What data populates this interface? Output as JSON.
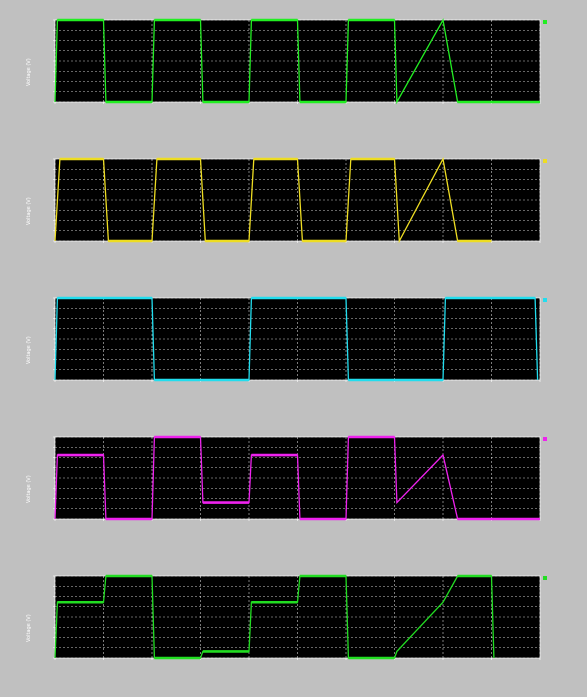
{
  "figure": {
    "background": "#c0c0c0",
    "axes_background": "#000000",
    "grid_color": "#ffffff"
  },
  "chart_data": [
    {
      "type": "line",
      "title": "",
      "xlabel": "",
      "ylabel": "Voltage (V)",
      "xlim": [
        0,
        10
      ],
      "ylim": [
        0,
        1
      ],
      "grid": true,
      "legend": "right",
      "series": [
        {
          "color": "#22ee22",
          "x": [
            0,
            0.05,
            1,
            1.05,
            2,
            2.05,
            3,
            3.05,
            4,
            4.05,
            5,
            5.05,
            6,
            6.05,
            7,
            7.05,
            8,
            8.3,
            9,
            9.05,
            10
          ],
          "y": [
            0,
            1,
            1,
            0,
            0,
            1,
            1,
            0,
            0,
            1,
            1,
            0,
            0,
            1,
            1,
            0,
            1,
            0,
            0,
            0,
            0
          ]
        }
      ]
    },
    {
      "type": "line",
      "title": "",
      "xlabel": "",
      "ylabel": "Voltage (V)",
      "xlim": [
        0,
        10
      ],
      "ylim": [
        0,
        1
      ],
      "grid": true,
      "legend": "right",
      "series": [
        {
          "color": "#eedd22",
          "x": [
            0,
            0.1,
            1,
            1.1,
            2,
            2.1,
            3,
            3.1,
            4,
            4.1,
            5,
            5.1,
            6,
            6.1,
            7,
            7.1,
            8,
            8.3,
            9
          ],
          "y": [
            0,
            1,
            1,
            0,
            0,
            1,
            1,
            0,
            0,
            1,
            1,
            0,
            0,
            1,
            1,
            0,
            1,
            0,
            0
          ]
        }
      ]
    },
    {
      "type": "line",
      "title": "",
      "xlabel": "",
      "ylabel": "Voltage (V)",
      "xlim": [
        0,
        10
      ],
      "ylim": [
        0,
        1
      ],
      "grid": true,
      "legend": "right",
      "series": [
        {
          "color": "#22ddee",
          "x": [
            0,
            0.05,
            2,
            2.05,
            4,
            4.05,
            6,
            6.05,
            8,
            8.05,
            9.9,
            9.95
          ],
          "y": [
            0,
            1,
            1,
            0,
            0,
            1,
            1,
            0,
            0,
            1,
            1,
            0
          ]
        }
      ]
    },
    {
      "type": "line",
      "title": "",
      "xlabel": "",
      "ylabel": "Voltage (V)",
      "xlim": [
        0,
        10
      ],
      "ylim": [
        0,
        1
      ],
      "grid": true,
      "legend": "right",
      "series": [
        {
          "color": "#ee22ee",
          "x": [
            0,
            0.05,
            1,
            1.05,
            2,
            2.05,
            3,
            3.05,
            4,
            4.05,
            5,
            5.05,
            6,
            6.05,
            7,
            7.05,
            8,
            8.3,
            9,
            9.05,
            10
          ],
          "y": [
            0,
            0.78,
            0.78,
            0,
            0,
            1,
            1,
            0.2,
            0.2,
            0.78,
            0.78,
            0,
            0,
            1,
            1,
            0.2,
            0.78,
            0,
            0,
            0,
            0
          ]
        }
      ]
    },
    {
      "type": "line",
      "title": "",
      "xlabel": "",
      "ylabel": "Voltage (V)",
      "xlim": [
        0,
        10
      ],
      "ylim": [
        0,
        1
      ],
      "grid": true,
      "legend": "right",
      "series": [
        {
          "color": "#22dd22",
          "x": [
            0,
            0.05,
            1,
            1.05,
            2,
            2.05,
            3,
            3.05,
            4,
            4.05,
            5,
            5.05,
            6,
            6.05,
            7,
            7.05,
            8,
            8.3,
            9,
            9.05
          ],
          "y": [
            0,
            0.68,
            0.68,
            1,
            1,
            0,
            0,
            0.08,
            0.08,
            0.68,
            0.68,
            1,
            1,
            0,
            0,
            0.08,
            0.68,
            1,
            1,
            0
          ]
        }
      ]
    }
  ]
}
